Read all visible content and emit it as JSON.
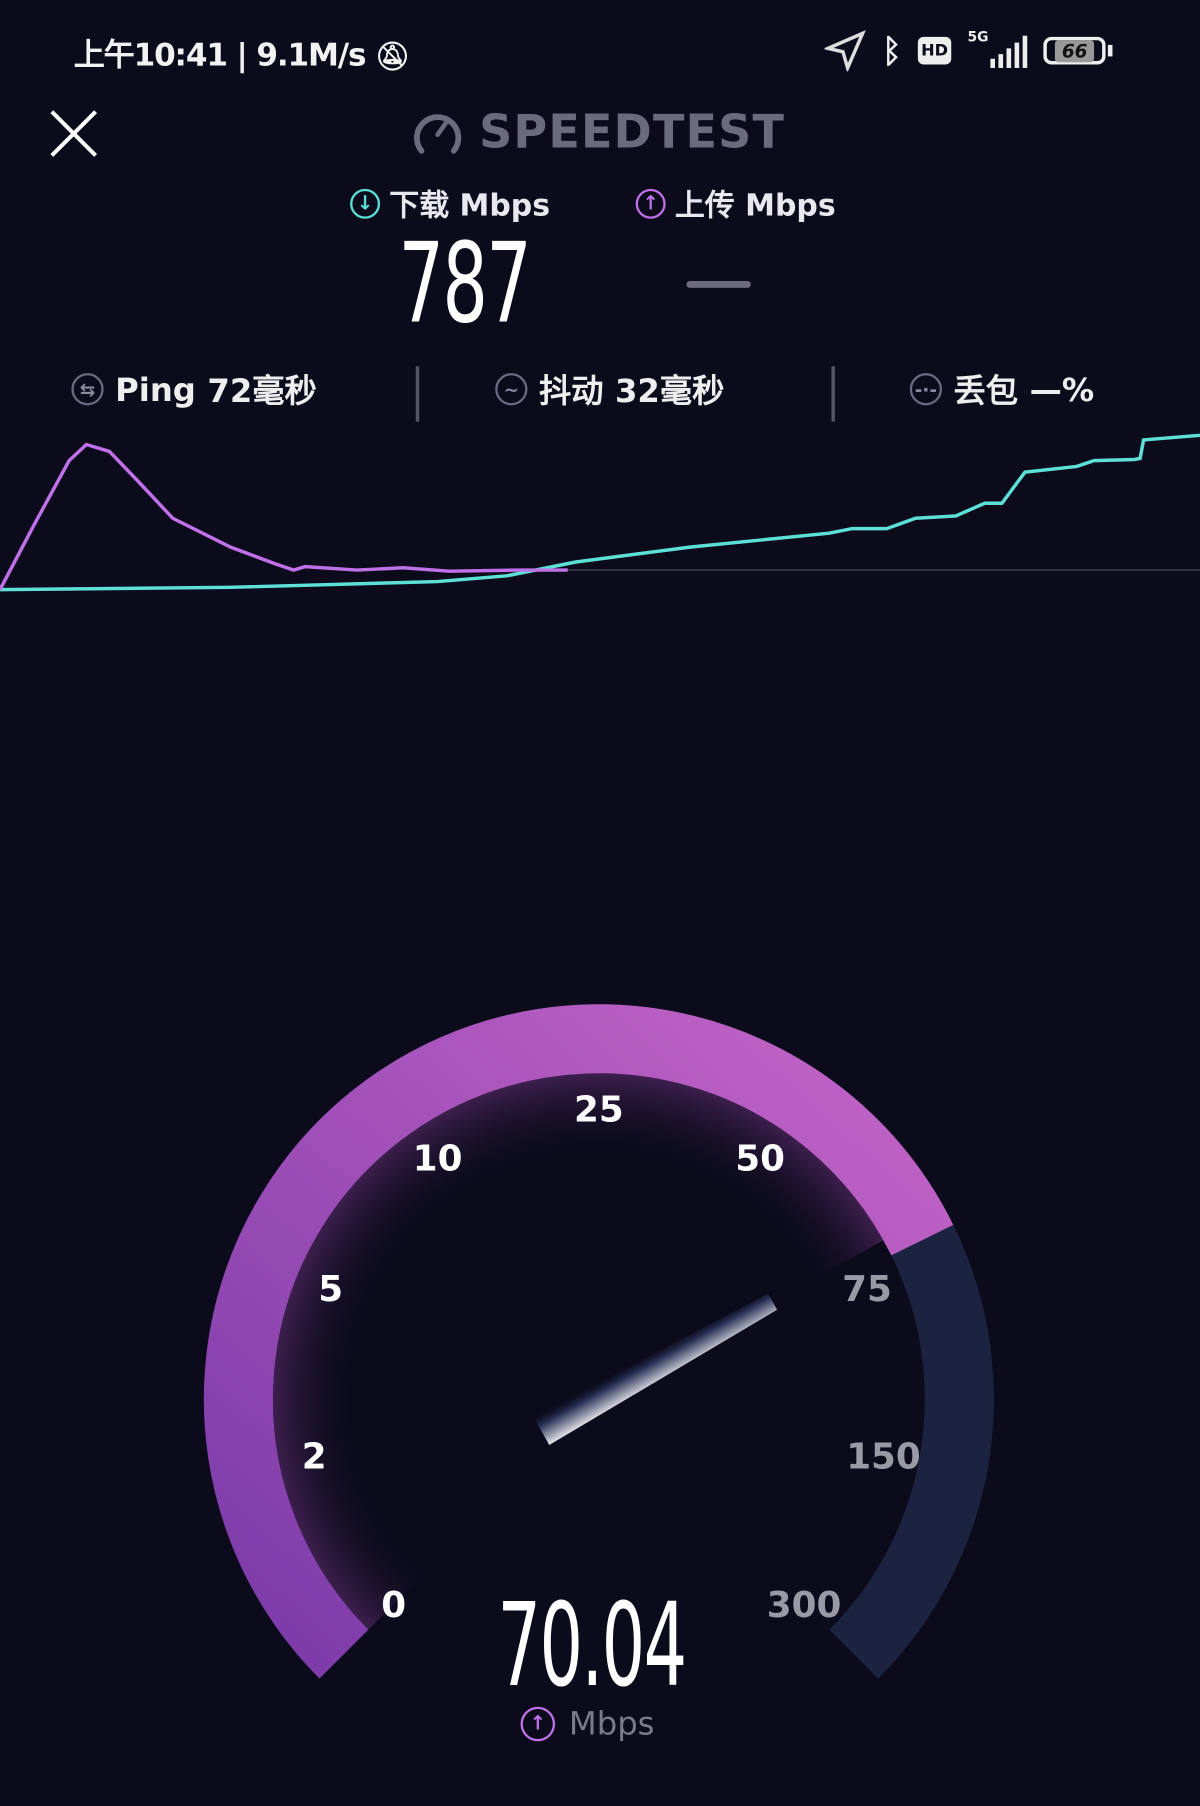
{
  "status_bar": {
    "time": "上午10:41",
    "net_speed": "9.1M/s",
    "network": "5G",
    "hd": "HD",
    "battery": "66"
  },
  "header": {
    "title": "SPEEDTEST"
  },
  "results": {
    "download": {
      "label": "下载 Mbps",
      "value": "787",
      "color": "#5de0d6"
    },
    "upload": {
      "label": "上传 Mbps",
      "value": "—",
      "color": "#c070e8"
    }
  },
  "metrics": {
    "ping": {
      "label": "Ping",
      "value": "72毫秒"
    },
    "jitter": {
      "label": "抖动",
      "value": "32毫秒"
    },
    "loss": {
      "label": "丢包",
      "value": "—%"
    }
  },
  "gauge": {
    "ticks": [
      "0",
      "2",
      "5",
      "10",
      "25",
      "50",
      "75",
      "150",
      "300"
    ],
    "value": 70.04,
    "reading": "70.04",
    "unit": "Mbps",
    "fill_color": "#b05cc8",
    "track_color": "#1c2340"
  }
}
